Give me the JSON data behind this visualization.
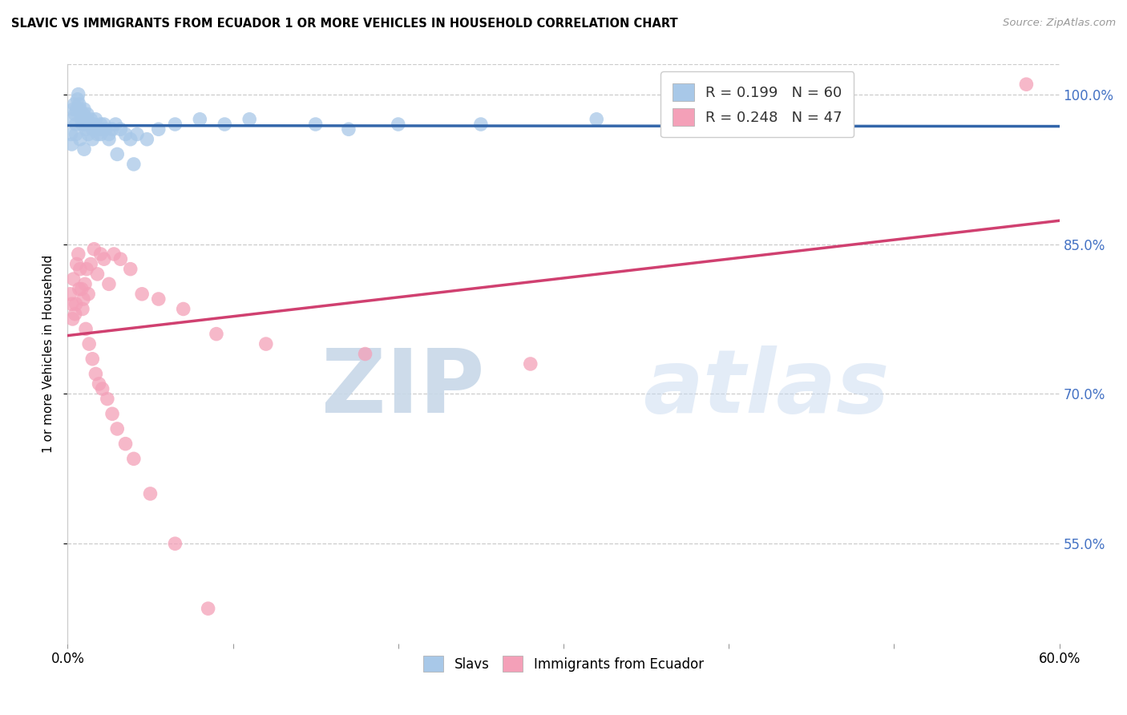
{
  "title": "SLAVIC VS IMMIGRANTS FROM ECUADOR 1 OR MORE VEHICLES IN HOUSEHOLD CORRELATION CHART",
  "source": "Source: ZipAtlas.com",
  "ylabel": "1 or more Vehicles in Household",
  "xlim": [
    0.0,
    60.0
  ],
  "ylim": [
    45.0,
    103.0
  ],
  "yticks": [
    55.0,
    70.0,
    85.0,
    100.0
  ],
  "ytick_labels": [
    "55.0%",
    "70.0%",
    "85.0%",
    "100.0%"
  ],
  "legend_blue_R": "R = 0.199",
  "legend_blue_N": "N = 60",
  "legend_pink_R": "R = 0.248",
  "legend_pink_N": "N = 47",
  "blue_color": "#a8c8e8",
  "pink_color": "#f4a0b8",
  "trendline_blue_color": "#3366aa",
  "trendline_pink_color": "#d04070",
  "watermark_zip": "ZIP",
  "watermark_atlas": "atlas",
  "slavs_x": [
    0.2,
    0.3,
    0.35,
    0.4,
    0.45,
    0.5,
    0.55,
    0.6,
    0.65,
    0.7,
    0.75,
    0.8,
    0.85,
    0.9,
    0.95,
    1.0,
    1.05,
    1.1,
    1.15,
    1.2,
    1.3,
    1.4,
    1.5,
    1.6,
    1.7,
    1.8,
    1.9,
    2.0,
    2.1,
    2.2,
    2.3,
    2.5,
    2.7,
    2.9,
    3.2,
    3.5,
    3.8,
    4.2,
    4.8,
    5.5,
    6.5,
    8.0,
    9.5,
    11.0,
    15.0,
    17.0,
    20.0,
    25.0,
    32.0,
    45.0,
    0.25,
    0.5,
    0.75,
    1.0,
    1.25,
    1.5,
    2.0,
    2.5,
    3.0,
    4.0
  ],
  "slavs_y": [
    96.0,
    97.5,
    98.5,
    99.0,
    98.0,
    97.0,
    98.5,
    99.5,
    100.0,
    99.0,
    98.5,
    98.0,
    97.5,
    97.0,
    98.0,
    98.5,
    97.0,
    96.5,
    97.5,
    98.0,
    97.0,
    97.5,
    96.5,
    97.0,
    97.5,
    96.0,
    96.5,
    97.0,
    96.5,
    97.0,
    96.5,
    96.0,
    96.5,
    97.0,
    96.5,
    96.0,
    95.5,
    96.0,
    95.5,
    96.5,
    97.0,
    97.5,
    97.0,
    97.5,
    97.0,
    96.5,
    97.0,
    97.0,
    97.5,
    97.0,
    95.0,
    96.0,
    95.5,
    94.5,
    96.0,
    95.5,
    96.0,
    95.5,
    94.0,
    93.0
  ],
  "ecuador_x": [
    0.15,
    0.25,
    0.35,
    0.45,
    0.55,
    0.65,
    0.75,
    0.85,
    0.95,
    1.05,
    1.15,
    1.25,
    1.4,
    1.6,
    1.8,
    2.0,
    2.2,
    2.5,
    2.8,
    3.2,
    3.8,
    4.5,
    5.5,
    7.0,
    9.0,
    12.0,
    18.0,
    28.0,
    58.0,
    0.3,
    0.5,
    0.7,
    0.9,
    1.1,
    1.3,
    1.5,
    1.7,
    1.9,
    2.1,
    2.4,
    2.7,
    3.0,
    3.5,
    4.0,
    5.0,
    6.5,
    8.5
  ],
  "ecuador_y": [
    80.0,
    79.0,
    81.5,
    78.0,
    83.0,
    84.0,
    82.5,
    80.5,
    79.5,
    81.0,
    82.5,
    80.0,
    83.0,
    84.5,
    82.0,
    84.0,
    83.5,
    81.0,
    84.0,
    83.5,
    82.5,
    80.0,
    79.5,
    78.5,
    76.0,
    75.0,
    74.0,
    73.0,
    101.0,
    77.5,
    79.0,
    80.5,
    78.5,
    76.5,
    75.0,
    73.5,
    72.0,
    71.0,
    70.5,
    69.5,
    68.0,
    66.5,
    65.0,
    63.5,
    60.0,
    55.0,
    48.5
  ]
}
